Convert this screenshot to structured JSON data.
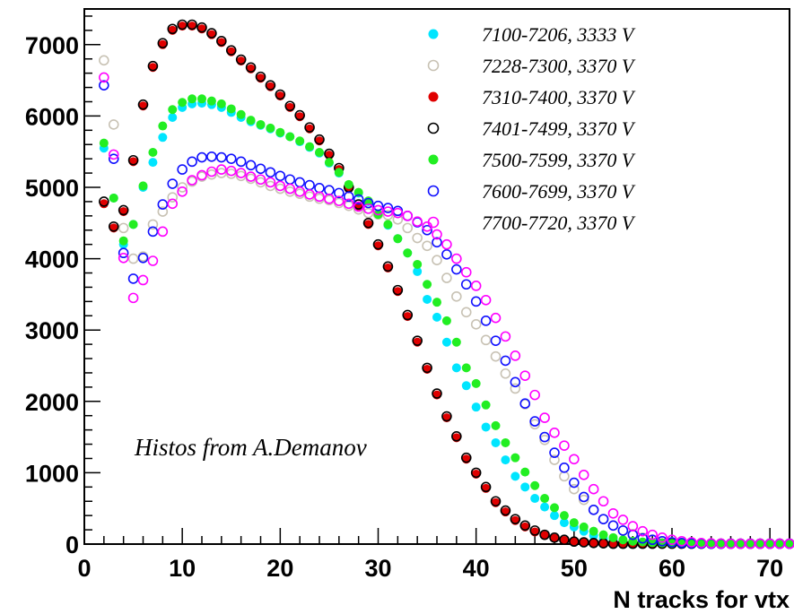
{
  "chart_data": {
    "type": "scatter",
    "title": "",
    "xlabel": "N tracks for vtx",
    "ylabel": "",
    "xlim": [
      0,
      72
    ],
    "ylim": [
      0,
      7500
    ],
    "xticks": [
      0,
      10,
      20,
      30,
      40,
      50,
      60,
      70
    ],
    "yticks": [
      0,
      1000,
      2000,
      3000,
      4000,
      5000,
      6000,
      7000
    ],
    "x_tick_labels": [
      "0",
      "10",
      "20",
      "30",
      "40",
      "50",
      "60",
      "70"
    ],
    "y_tick_labels": [
      "0",
      "1000",
      "2000",
      "3000",
      "4000",
      "5000",
      "6000",
      "7000"
    ],
    "legend_position": "top-right",
    "annotation": "Histos from A.Demanov",
    "series": [
      {
        "name": "7100-7206, 3333 V",
        "color": "#00e5ff",
        "marker": "filled",
        "x": [
          2,
          3,
          4,
          5,
          6,
          7,
          8,
          9,
          10,
          11,
          12,
          13,
          14,
          15,
          16,
          17,
          18,
          19,
          20,
          21,
          22,
          23,
          24,
          25,
          26,
          27,
          28,
          29,
          30,
          31,
          32,
          33,
          34,
          35,
          36,
          37,
          38,
          39,
          40,
          41,
          42,
          43,
          44,
          45,
          46,
          47,
          48,
          49,
          50,
          51,
          52,
          53,
          54,
          55,
          56,
          57,
          58,
          59,
          60,
          61,
          62,
          63,
          64,
          65,
          66,
          67,
          68,
          69,
          70,
          71,
          72
        ],
        "y": [
          5550,
          4850,
          4200,
          4480,
          5000,
          5350,
          5700,
          5980,
          6120,
          6170,
          6180,
          6160,
          6120,
          6050,
          5980,
          5920,
          5870,
          5820,
          5760,
          5710,
          5640,
          5560,
          5480,
          5340,
          5200,
          5030,
          4920,
          4800,
          4610,
          4470,
          4280,
          4080,
          3820,
          3430,
          3180,
          2830,
          2470,
          2220,
          1920,
          1640,
          1420,
          1180,
          950,
          800,
          640,
          520,
          400,
          300,
          240,
          180,
          120,
          80,
          60,
          40,
          25,
          20,
          15,
          10,
          8,
          5,
          5,
          5,
          5,
          5,
          5,
          5,
          5,
          5,
          5,
          5,
          5
        ]
      },
      {
        "name": "7228-7300, 3370 V",
        "color": "#c8c2b4",
        "marker": "open",
        "x": [
          2,
          3,
          4,
          5,
          6,
          7,
          8,
          9,
          10,
          11,
          12,
          13,
          14,
          15,
          16,
          17,
          18,
          19,
          20,
          21,
          22,
          23,
          24,
          25,
          26,
          27,
          28,
          29,
          30,
          31,
          32,
          33,
          34,
          35,
          36,
          37,
          38,
          39,
          40,
          41,
          42,
          43,
          44,
          45,
          46,
          47,
          48,
          49,
          50,
          51,
          52,
          53,
          54,
          55,
          56,
          57,
          58,
          59,
          60,
          61,
          62,
          63,
          64,
          65,
          66,
          67,
          68,
          69,
          70,
          71,
          72
        ],
        "y": [
          6780,
          5880,
          4430,
          4000,
          4030,
          4480,
          4660,
          4860,
          5000,
          5080,
          5150,
          5180,
          5200,
          5190,
          5160,
          5120,
          5070,
          5020,
          4980,
          4940,
          4910,
          4870,
          4840,
          4820,
          4780,
          4740,
          4690,
          4640,
          4620,
          4610,
          4550,
          4430,
          4290,
          4180,
          3980,
          3730,
          3470,
          3250,
          3080,
          2860,
          2630,
          2390,
          2180,
          1960,
          1680,
          1460,
          1180,
          950,
          770,
          620,
          480,
          350,
          260,
          190,
          140,
          90,
          60,
          40,
          25,
          15,
          10,
          8,
          5,
          5,
          5,
          5,
          5,
          5,
          5,
          5,
          5
        ]
      },
      {
        "name": "7310-7400, 3370 V",
        "color": "#e00000",
        "marker": "filled",
        "x": [
          2,
          3,
          4,
          5,
          6,
          7,
          8,
          9,
          10,
          11,
          12,
          13,
          14,
          15,
          16,
          17,
          18,
          19,
          20,
          21,
          22,
          23,
          24,
          25,
          26,
          27,
          28,
          29,
          30,
          31,
          32,
          33,
          34,
          35,
          36,
          37,
          38,
          39,
          40,
          41,
          42,
          43,
          44,
          45,
          46,
          47,
          48,
          49,
          50,
          51,
          52,
          53,
          54,
          55,
          56,
          57,
          58,
          59,
          60,
          61,
          62,
          63,
          64,
          65,
          66,
          67,
          68,
          69,
          70,
          71,
          72
        ],
        "y": [
          4770,
          4430,
          4660,
          5360,
          6140,
          6680,
          7000,
          7200,
          7260,
          7260,
          7220,
          7140,
          7030,
          6900,
          6770,
          6660,
          6530,
          6410,
          6280,
          6120,
          5990,
          5820,
          5650,
          5450,
          5250,
          4980,
          4740,
          4480,
          4180,
          3870,
          3540,
          3190,
          2830,
          2450,
          2090,
          1770,
          1490,
          1190,
          980,
          780,
          580,
          450,
          330,
          240,
          170,
          120,
          80,
          50,
          30,
          20,
          10,
          5,
          5,
          5,
          5,
          5,
          5,
          5,
          5,
          5,
          5,
          5,
          5,
          5,
          5,
          5,
          5,
          5,
          5,
          5,
          5
        ]
      },
      {
        "name": "7401-7499, 3370 V",
        "color": "#000000",
        "marker": "open",
        "x": [
          2,
          3,
          4,
          5,
          6,
          7,
          8,
          9,
          10,
          11,
          12,
          13,
          14,
          15,
          16,
          17,
          18,
          19,
          20,
          21,
          22,
          23,
          24,
          25,
          26,
          27,
          28,
          29,
          30,
          31,
          32,
          33,
          34,
          35,
          36,
          37,
          38,
          39,
          40,
          41,
          42,
          43,
          44,
          45,
          46,
          47,
          48,
          49,
          50,
          51,
          52,
          53,
          54,
          55,
          56,
          57,
          58,
          59,
          60,
          61,
          62,
          63,
          64,
          65,
          66,
          67,
          68,
          69,
          70,
          71,
          72
        ],
        "y": [
          4800,
          4450,
          4680,
          5380,
          6160,
          6700,
          7020,
          7220,
          7280,
          7280,
          7240,
          7160,
          7050,
          6920,
          6790,
          6680,
          6550,
          6430,
          6300,
          6140,
          6010,
          5840,
          5670,
          5470,
          5270,
          5000,
          4760,
          4500,
          4200,
          3890,
          3560,
          3210,
          2850,
          2470,
          2110,
          1790,
          1510,
          1210,
          1000,
          800,
          600,
          470,
          350,
          260,
          190,
          130,
          90,
          60,
          35,
          25,
          15,
          10,
          5,
          5,
          5,
          5,
          5,
          5,
          5,
          5,
          5,
          5,
          5,
          5,
          5,
          5,
          5,
          5,
          5,
          5,
          5
        ]
      },
      {
        "name": "7500-7599, 3370 V",
        "color": "#22ee22",
        "marker": "filled",
        "x": [
          2,
          3,
          4,
          5,
          6,
          7,
          8,
          9,
          10,
          11,
          12,
          13,
          14,
          15,
          16,
          17,
          18,
          19,
          20,
          21,
          22,
          23,
          24,
          25,
          26,
          27,
          28,
          29,
          30,
          31,
          32,
          33,
          34,
          35,
          36,
          37,
          38,
          39,
          40,
          41,
          42,
          43,
          44,
          45,
          46,
          47,
          48,
          49,
          50,
          51,
          52,
          53,
          54,
          55,
          56,
          57,
          58,
          59,
          60,
          61,
          62,
          63,
          64,
          65,
          66,
          67,
          68,
          69,
          70,
          71,
          72
        ],
        "y": [
          5620,
          4850,
          4250,
          4480,
          5020,
          5490,
          5860,
          6090,
          6190,
          6240,
          6240,
          6210,
          6170,
          6100,
          6020,
          5940,
          5880,
          5830,
          5770,
          5710,
          5650,
          5570,
          5490,
          5350,
          5210,
          5040,
          4930,
          4810,
          4620,
          4480,
          4280,
          4080,
          3920,
          3640,
          3390,
          3130,
          2830,
          2470,
          2250,
          1950,
          1660,
          1420,
          1210,
          1010,
          820,
          640,
          510,
          400,
          300,
          240,
          180,
          130,
          90,
          60,
          40,
          30,
          20,
          15,
          10,
          8,
          5,
          5,
          5,
          5,
          5,
          5,
          5,
          5,
          5,
          5,
          5
        ]
      },
      {
        "name": "7600-7699, 3370 V",
        "color": "#1010ff",
        "marker": "open",
        "x": [
          2,
          3,
          4,
          5,
          6,
          7,
          8,
          9,
          10,
          11,
          12,
          13,
          14,
          15,
          16,
          17,
          18,
          19,
          20,
          21,
          22,
          23,
          24,
          25,
          26,
          27,
          28,
          29,
          30,
          31,
          32,
          33,
          34,
          35,
          36,
          37,
          38,
          39,
          40,
          41,
          42,
          43,
          44,
          45,
          46,
          47,
          48,
          49,
          50,
          51,
          52,
          53,
          54,
          55,
          56,
          57,
          58,
          59,
          60,
          61,
          62,
          63,
          64,
          65,
          66,
          67,
          68,
          69,
          70,
          71,
          72
        ],
        "y": [
          6430,
          5400,
          4080,
          3720,
          4010,
          4380,
          4760,
          5050,
          5250,
          5360,
          5420,
          5430,
          5420,
          5400,
          5360,
          5310,
          5260,
          5210,
          5160,
          5110,
          5070,
          5030,
          4990,
          4960,
          4920,
          4870,
          4830,
          4780,
          4740,
          4710,
          4670,
          4600,
          4510,
          4400,
          4230,
          4060,
          3850,
          3640,
          3400,
          3130,
          2850,
          2570,
          2270,
          1970,
          1720,
          1500,
          1280,
          1070,
          860,
          660,
          480,
          350,
          260,
          190,
          130,
          80,
          60,
          40,
          25,
          15,
          10,
          8,
          5,
          5,
          5,
          5,
          5,
          5,
          5,
          5,
          5
        ]
      },
      {
        "name": "7700-7720, 3370 V",
        "color": "#ff00ff",
        "marker": "open",
        "x": [
          2,
          3,
          4,
          5,
          6,
          7,
          8,
          9,
          10,
          11,
          12,
          13,
          14,
          15,
          16,
          17,
          18,
          19,
          20,
          21,
          22,
          23,
          24,
          25,
          26,
          27,
          28,
          29,
          30,
          31,
          32,
          33,
          34,
          35,
          36,
          37,
          38,
          39,
          40,
          41,
          42,
          43,
          44,
          45,
          46,
          47,
          48,
          49,
          50,
          51,
          52,
          53,
          54,
          55,
          56,
          57,
          58,
          59,
          60,
          61,
          62,
          63,
          64,
          65,
          66,
          67,
          68,
          69,
          70,
          71,
          72
        ],
        "y": [
          6540,
          5460,
          4010,
          3450,
          3700,
          3970,
          4380,
          4770,
          4940,
          5100,
          5170,
          5220,
          5250,
          5230,
          5200,
          5150,
          5110,
          5070,
          5020,
          4980,
          4940,
          4900,
          4870,
          4840,
          4810,
          4770,
          4730,
          4700,
          4680,
          4660,
          4640,
          4600,
          4520,
          4450,
          4340,
          4200,
          4000,
          3810,
          3620,
          3420,
          3170,
          2910,
          2640,
          2360,
          2090,
          1770,
          1560,
          1380,
          1190,
          970,
          770,
          600,
          430,
          340,
          250,
          180,
          130,
          90,
          60,
          40,
          25,
          15,
          10,
          8,
          5,
          5,
          5,
          5,
          5,
          5,
          5
        ]
      }
    ]
  }
}
